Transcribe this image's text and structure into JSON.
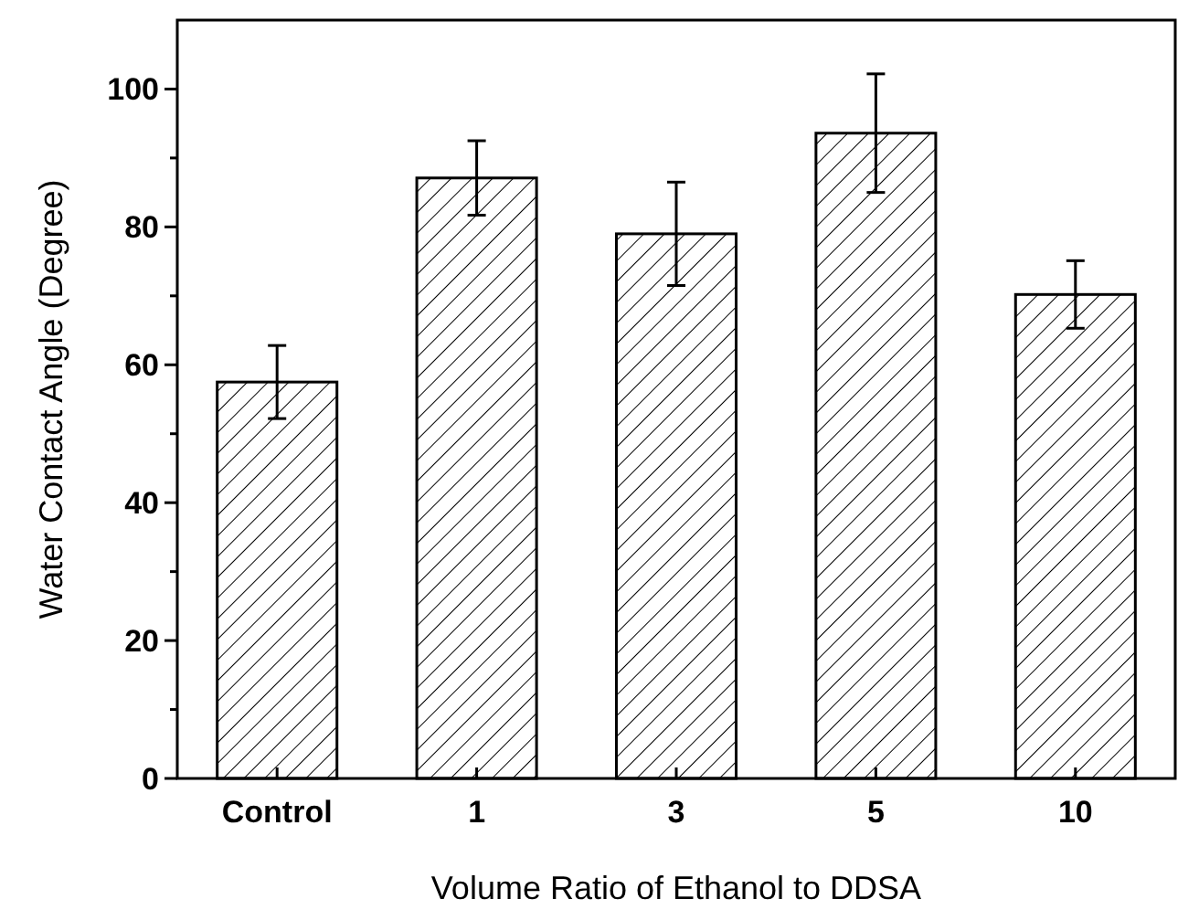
{
  "chart_data": {
    "type": "bar",
    "xlabel": "Volume Ratio of Ethanol to DDSA",
    "ylabel": "Water Contact Angle (Degree)",
    "categories": [
      "Control",
      "1",
      "3",
      "5",
      "10"
    ],
    "values": [
      57.5,
      87.1,
      79.0,
      93.6,
      70.2
    ],
    "errors": [
      5.3,
      5.4,
      7.5,
      8.6,
      4.9
    ],
    "color": "#ffffff",
    "ylim": [
      0,
      110
    ],
    "yticks": [
      0,
      {
        "value": 10,
        "label": null
      },
      20,
      {
        "value": 30,
        "label": null
      },
      40,
      {
        "value": 50,
        "label": null
      },
      60,
      {
        "value": 70,
        "label": null
      },
      80,
      {
        "value": 90,
        "label": null
      },
      100
    ],
    "grid": false
  }
}
